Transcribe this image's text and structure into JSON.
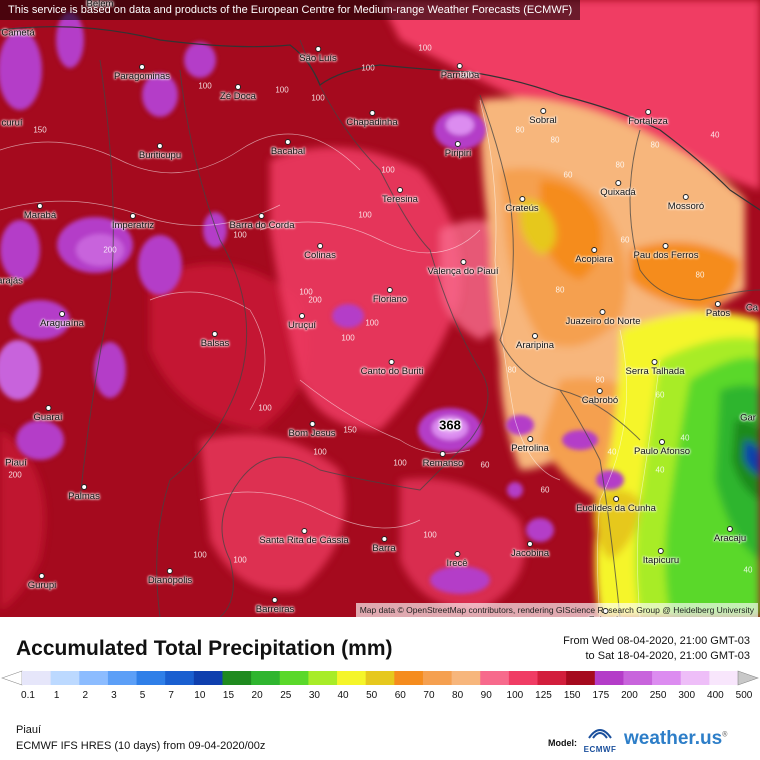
{
  "banner": "This service is based on data and products of the European Centre for Medium-range Weather Forecasts (ECMWF)",
  "attribution": "Map data © OpenStreetMap contributors, rendering GIScience Research Group @ Heidelberg University",
  "title": "Accumulated Total Precipitation (mm)",
  "period_from": "From Wed 08-04-2020, 21:00 GMT-03",
  "period_to": "to Sat 18-04-2020, 21:00 GMT-03",
  "region": "Piauí",
  "model_run": "ECMWF IFS HRES (10 days) from 09-04-2020/00z",
  "model_label": "Model:",
  "model_logo_text": "ECMWF",
  "brand": "weather.us",
  "max_value": "368",
  "colors": {
    "below_scale": "#ffffff",
    "above_scale": "#c8c8c8"
  },
  "scale": [
    {
      "label": "0.1",
      "color": "#e6e6fa"
    },
    {
      "label": "1",
      "color": "#bcd9ff"
    },
    {
      "label": "2",
      "color": "#8cbcff"
    },
    {
      "label": "3",
      "color": "#5c9ff7"
    },
    {
      "label": "5",
      "color": "#2f7fe8"
    },
    {
      "label": "7",
      "color": "#1a5fd0"
    },
    {
      "label": "10",
      "color": "#0f3fae"
    },
    {
      "label": "15",
      "color": "#1f8a1f"
    },
    {
      "label": "20",
      "color": "#2fb52f"
    },
    {
      "label": "25",
      "color": "#5ad82a"
    },
    {
      "label": "30",
      "color": "#a8ec28"
    },
    {
      "label": "40",
      "color": "#f5f52a"
    },
    {
      "label": "50",
      "color": "#e6c81e"
    },
    {
      "label": "60",
      "color": "#f58c1e"
    },
    {
      "label": "70",
      "color": "#f5a050"
    },
    {
      "label": "80",
      "color": "#f7b67c"
    },
    {
      "label": "90",
      "color": "#f76a8c"
    },
    {
      "label": "100",
      "color": "#f03c64"
    },
    {
      "label": "125",
      "color": "#d21e3c"
    },
    {
      "label": "150",
      "color": "#a50a1e"
    },
    {
      "label": "175",
      "color": "#b43cc8"
    },
    {
      "label": "200",
      "color": "#c864dc"
    },
    {
      "label": "250",
      "color": "#dc8cf0"
    },
    {
      "label": "300",
      "color": "#eebef8"
    },
    {
      "label": "400",
      "color": "#f8e6fc"
    },
    {
      "label": "500",
      "color": "#dcdcdc"
    }
  ],
  "cities": [
    {
      "name": "São Luís"
    },
    {
      "name": "Parnaíba"
    },
    {
      "name": "Paragominas"
    },
    {
      "name": "Zé Doca"
    },
    {
      "name": "Chapadinha"
    },
    {
      "name": "Sobral"
    },
    {
      "name": "Fortaleza"
    },
    {
      "name": "Buriticupu"
    },
    {
      "name": "Bacabal"
    },
    {
      "name": "Piripiri"
    },
    {
      "name": "Teresina"
    },
    {
      "name": "Crateús"
    },
    {
      "name": "Quixadá"
    },
    {
      "name": "Mossoró"
    },
    {
      "name": "Marabá"
    },
    {
      "name": "Imperatriz"
    },
    {
      "name": "Barra do Corda"
    },
    {
      "name": "Colinas"
    },
    {
      "name": "Valença do Piauí"
    },
    {
      "name": "Acopiara"
    },
    {
      "name": "Pau dos Ferros"
    },
    {
      "name": "Floriano"
    },
    {
      "name": "Juazeiro do Norte"
    },
    {
      "name": "Patos"
    },
    {
      "name": "Araguaína"
    },
    {
      "name": "Uruçuí"
    },
    {
      "name": "Balsas"
    },
    {
      "name": "Araripina"
    },
    {
      "name": "Canto do Buriti"
    },
    {
      "name": "Serra Talhada"
    },
    {
      "name": "Cabrobó"
    },
    {
      "name": "Guaraí"
    },
    {
      "name": "Bom Jesus"
    },
    {
      "name": "Petrolina"
    },
    {
      "name": "Paulo Afonso"
    },
    {
      "name": "Remanso"
    },
    {
      "name": "Palmas"
    },
    {
      "name": "Euclides da Cunha"
    },
    {
      "name": "Santa Rita de Cássia"
    },
    {
      "name": "Barra"
    },
    {
      "name": "Irecê"
    },
    {
      "name": "Jacobina"
    },
    {
      "name": "Aracaju"
    },
    {
      "name": "Itapicuru"
    },
    {
      "name": "Gurupi"
    },
    {
      "name": "Dianópolis"
    },
    {
      "name": "Barreiras"
    },
    {
      "name": "Feira de"
    },
    {
      "name": "Cametá"
    },
    {
      "name": "Belem"
    },
    {
      "name": "curuí"
    },
    {
      "name": "arajás"
    },
    {
      "name": "Piauí"
    },
    {
      "name": "Gar"
    },
    {
      "name": "Ca"
    }
  ],
  "contour_labels": [
    "100",
    "100",
    "100",
    "100",
    "100",
    "100",
    "100",
    "100",
    "100",
    "100",
    "100",
    "100",
    "100",
    "100",
    "100",
    "100",
    "100",
    "100",
    "200",
    "200",
    "200",
    "80",
    "80",
    "80",
    "80",
    "80",
    "80",
    "80",
    "80",
    "60",
    "60",
    "60",
    "60",
    "60",
    "40",
    "40",
    "40",
    "40",
    "40",
    "150",
    "150"
  ]
}
